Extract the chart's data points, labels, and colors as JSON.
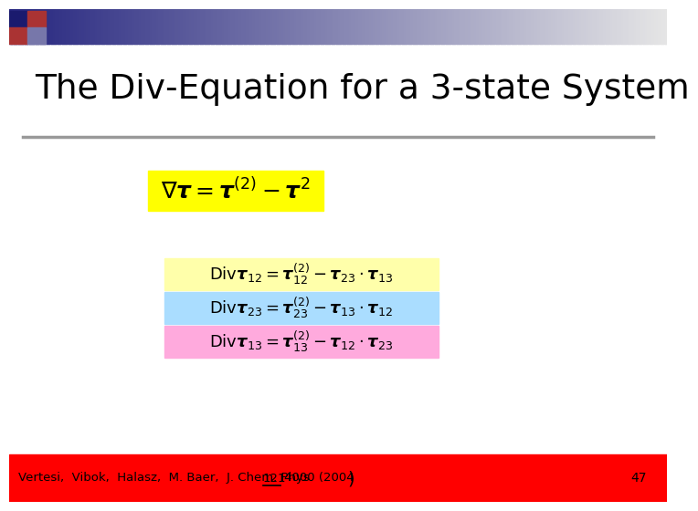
{
  "title": "The Div‑Equation for a 3‑state System",
  "bg_color": "#ffffff",
  "separator_color": "#999999",
  "eq_main_bg": "#ffff00",
  "eq_rows_bg": [
    "#ffffaa",
    "#aaddff",
    "#ffaadd"
  ],
  "footer_bg": "#ff0000",
  "footer_text": "Vertesi,  Vibok,  Halasz,  M. Baer,  J. Chem. Phys. ",
  "footer_journal": "121",
  "footer_rest": ",4000 (2004",
  "footer_paren": ")",
  "footer_page": "47",
  "footer_color": "#000000"
}
